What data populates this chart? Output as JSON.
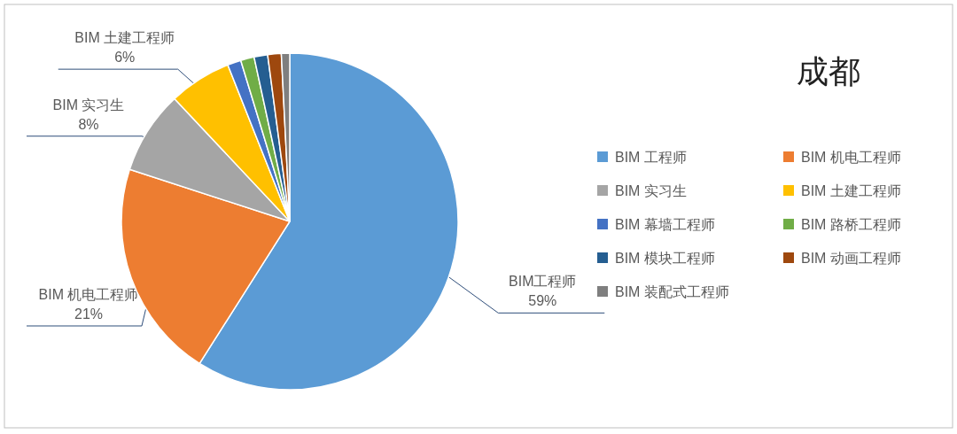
{
  "chart_data": {
    "type": "pie",
    "title": "成都",
    "categories": [
      "BIM 工程师",
      "BIM 机电工程师",
      "BIM 实习生",
      "BIM 土建工程师",
      "BIM 幕墙工程师",
      "BIM 路桥工程师",
      "BIM 模块工程师",
      "BIM 动画工程师",
      "BIM 装配式工程师"
    ],
    "values": [
      59,
      21,
      8,
      6,
      1.3,
      1.3,
      1.3,
      1.3,
      0.8
    ],
    "colors": [
      "#5b9bd5",
      "#ed7d31",
      "#a5a5a5",
      "#ffc000",
      "#4472c4",
      "#70ad47",
      "#255e91",
      "#9e480e",
      "#7f7f7f"
    ],
    "value_labels": [
      "BIM工程师\n59%",
      "BIM 机电工程师\n21%",
      "BIM 实习生\n8%",
      "BIM 土建工程师\n6%",
      null,
      null,
      null,
      null,
      null
    ],
    "legend": "right"
  }
}
